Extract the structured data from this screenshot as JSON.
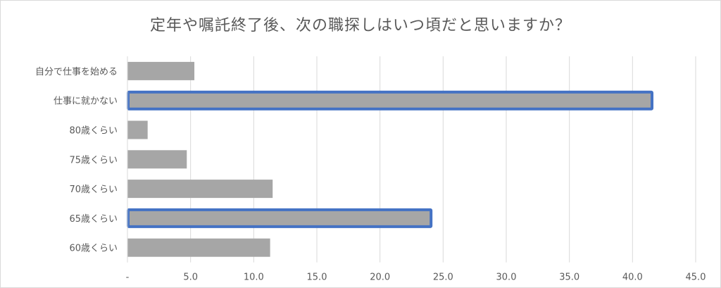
{
  "chart_data": {
    "type": "bar",
    "orientation": "horizontal",
    "title": "定年や嘱託終了後、次の職探しはいつ頃だと思いますか？",
    "categories": [
      "自分で仕事を始める",
      "仕事に就かない",
      "80歳くらい",
      "75歳くらい",
      "70歳くらい",
      "65歳くらい",
      "60歳くらい"
    ],
    "values": [
      5.3,
      41.6,
      1.6,
      4.7,
      11.5,
      24.1,
      11.3
    ],
    "highlighted": [
      "仕事に就かない",
      "65歳くらい"
    ],
    "xlim": [
      0,
      45
    ],
    "xticks": [
      "-",
      "5.0",
      "10.0",
      "15.0",
      "20.0",
      "25.0",
      "30.0",
      "35.0",
      "40.0",
      "45.0"
    ],
    "grid": true,
    "colors": {
      "bar": "#a6a6a6",
      "highlight_border": "#4472c4",
      "grid": "#d9d9d9",
      "text": "#595959"
    }
  }
}
